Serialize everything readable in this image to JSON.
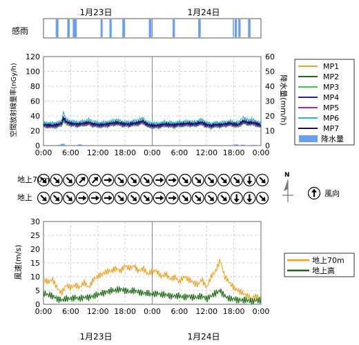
{
  "header": {
    "date_labels": [
      "1月23日",
      "1月24日"
    ]
  },
  "rain_sensor": {
    "label": "感雨",
    "color": "#6a9ef0",
    "intervals_hours": [
      [
        5.4,
        6.6
      ],
      [
        10.5,
        11.6
      ],
      [
        12.9,
        14.7
      ],
      [
        25.2,
        26.1
      ],
      [
        29.1,
        30.1
      ],
      [
        34.8,
        36.0
      ],
      [
        46.5,
        47.7
      ],
      [
        57.0,
        58.0
      ],
      [
        68.3,
        69.4
      ],
      [
        83.6,
        83.9
      ],
      [
        84.4,
        85.4
      ],
      [
        86.0,
        87.0
      ],
      [
        90.3,
        91.4
      ]
    ]
  },
  "chart_data": [
    {
      "type": "line",
      "id": "dose_rate",
      "title": "",
      "xlabel": "",
      "ylabel": "空間放射線量率(nGy/h)",
      "y2label": "降水量(mm/h)",
      "ylim": [
        0,
        120
      ],
      "y2lim": [
        0,
        60
      ],
      "yticks": [
        0,
        20,
        40,
        60,
        80,
        100,
        120
      ],
      "y2ticks": [
        0,
        10,
        20,
        30,
        40,
        50,
        60
      ],
      "xlim_hours": [
        0,
        96
      ],
      "xtick_labels": [
        "0:00",
        "6:00",
        "12:00",
        "18:00",
        "0:00",
        "6:00",
        "12:00",
        "18:00",
        "0:00"
      ],
      "grid": true,
      "legend": "right",
      "series": [
        {
          "name": "MP1",
          "color": "#f0a030",
          "x_hours": [
            0,
            4,
            6,
            8,
            8.8,
            10,
            12,
            14,
            16,
            18,
            20,
            22,
            24,
            26,
            28,
            30,
            32,
            34,
            36,
            38,
            40,
            42,
            44,
            46,
            48,
            50,
            52,
            54,
            56,
            58,
            60,
            62,
            64,
            66,
            68,
            70,
            72,
            74,
            76,
            78,
            80,
            82,
            84,
            86,
            88,
            90,
            92,
            94,
            96
          ],
          "values": [
            28,
            27,
            28,
            30,
            38,
            32,
            30,
            29,
            29,
            30,
            31,
            29,
            28,
            28,
            29,
            30,
            31,
            30,
            29,
            29,
            30,
            31,
            33,
            28,
            27,
            27,
            28,
            29,
            28,
            28,
            29,
            29,
            30,
            29,
            30,
            31,
            28,
            27,
            28,
            28,
            29,
            30,
            29,
            28,
            33,
            31,
            31,
            30,
            27
          ]
        },
        {
          "name": "MP2",
          "color": "#1a6b1a",
          "x_hours": [
            0,
            4,
            6,
            8,
            8.8,
            10,
            12,
            14,
            16,
            18,
            20,
            22,
            24,
            26,
            28,
            30,
            32,
            34,
            36,
            38,
            40,
            42,
            44,
            46,
            48,
            50,
            52,
            54,
            56,
            58,
            60,
            62,
            64,
            66,
            68,
            70,
            72,
            74,
            76,
            78,
            80,
            82,
            84,
            86,
            88,
            90,
            92,
            94,
            96
          ],
          "values": [
            27,
            26,
            27,
            29,
            37,
            31,
            29,
            28,
            28,
            29,
            30,
            28,
            27,
            27,
            28,
            29,
            30,
            29,
            28,
            28,
            29,
            30,
            32,
            27,
            26,
            26,
            27,
            28,
            27,
            27,
            28,
            28,
            29,
            28,
            29,
            30,
            27,
            26,
            27,
            27,
            28,
            29,
            28,
            27,
            32,
            30,
            30,
            29,
            26
          ]
        },
        {
          "name": "MP3",
          "color": "#33d333",
          "x_hours": [
            0,
            4,
            6,
            8,
            8.8,
            10,
            12,
            14,
            16,
            18,
            20,
            22,
            24,
            26,
            28,
            30,
            32,
            34,
            36,
            38,
            40,
            42,
            44,
            46,
            48,
            50,
            52,
            54,
            56,
            58,
            60,
            62,
            64,
            66,
            68,
            70,
            72,
            74,
            76,
            78,
            80,
            82,
            84,
            86,
            88,
            90,
            92,
            94,
            96
          ],
          "values": [
            25,
            24,
            25,
            27,
            33,
            28,
            27,
            26,
            26,
            27,
            28,
            26,
            25,
            25,
            26,
            27,
            28,
            27,
            26,
            26,
            27,
            28,
            30,
            25,
            24,
            24,
            25,
            26,
            25,
            25,
            26,
            26,
            27,
            26,
            27,
            28,
            25,
            24,
            25,
            25,
            26,
            27,
            26,
            25,
            30,
            28,
            28,
            27,
            24
          ]
        },
        {
          "name": "MP4",
          "color": "#1a1ad0",
          "x_hours": [
            0,
            4,
            6,
            8,
            8.8,
            10,
            12,
            14,
            16,
            18,
            20,
            22,
            24,
            26,
            28,
            30,
            32,
            34,
            36,
            38,
            40,
            42,
            44,
            46,
            48,
            50,
            52,
            54,
            56,
            58,
            60,
            62,
            64,
            66,
            68,
            70,
            72,
            74,
            76,
            78,
            80,
            82,
            84,
            86,
            88,
            90,
            92,
            94,
            96
          ],
          "values": [
            29,
            28,
            29,
            31,
            39,
            33,
            31,
            30,
            30,
            31,
            32,
            30,
            29,
            29,
            30,
            31,
            32,
            31,
            30,
            30,
            31,
            32,
            34,
            29,
            28,
            28,
            29,
            30,
            29,
            29,
            30,
            30,
            31,
            30,
            31,
            32,
            29,
            28,
            29,
            29,
            30,
            31,
            30,
            29,
            34,
            32,
            32,
            31,
            28
          ]
        },
        {
          "name": "MP5",
          "color": "#9a2ad0",
          "x_hours": [
            0,
            4,
            6,
            8,
            8.8,
            10,
            12,
            14,
            16,
            18,
            20,
            22,
            24,
            26,
            28,
            30,
            32,
            34,
            36,
            38,
            40,
            42,
            44,
            46,
            48,
            50,
            52,
            54,
            56,
            58,
            60,
            62,
            64,
            66,
            68,
            70,
            72,
            74,
            76,
            78,
            80,
            82,
            84,
            86,
            88,
            90,
            92,
            94,
            96
          ],
          "values": [
            26,
            25,
            26,
            28,
            35,
            30,
            28,
            27,
            27,
            28,
            29,
            27,
            26,
            26,
            27,
            28,
            29,
            28,
            27,
            27,
            28,
            29,
            31,
            26,
            25,
            25,
            26,
            27,
            26,
            26,
            27,
            27,
            28,
            27,
            28,
            29,
            26,
            25,
            26,
            26,
            27,
            28,
            27,
            26,
            31,
            29,
            29,
            28,
            25
          ]
        },
        {
          "name": "MP6",
          "color": "#20b8b8",
          "x_hours": [
            0,
            4,
            6,
            8,
            8.8,
            10,
            12,
            14,
            16,
            18,
            20,
            22,
            24,
            26,
            28,
            30,
            32,
            34,
            36,
            38,
            40,
            42,
            44,
            46,
            48,
            50,
            52,
            54,
            56,
            58,
            60,
            62,
            64,
            66,
            68,
            70,
            72,
            74,
            76,
            78,
            80,
            82,
            84,
            86,
            88,
            90,
            92,
            94,
            96
          ],
          "values": [
            31,
            30,
            31,
            33,
            45,
            35,
            33,
            32,
            32,
            33,
            35,
            33,
            31,
            31,
            32,
            33,
            35,
            33,
            32,
            32,
            33,
            35,
            37,
            31,
            30,
            30,
            31,
            32,
            31,
            31,
            32,
            32,
            33,
            32,
            33,
            35,
            31,
            30,
            31,
            31,
            32,
            33,
            32,
            31,
            38,
            35,
            35,
            33,
            30
          ]
        },
        {
          "name": "MP7",
          "color": "#10105a",
          "x_hours": [
            0,
            4,
            6,
            8,
            8.8,
            10,
            12,
            14,
            16,
            18,
            20,
            22,
            24,
            26,
            28,
            30,
            32,
            34,
            36,
            38,
            40,
            42,
            44,
            46,
            48,
            50,
            52,
            54,
            56,
            58,
            60,
            62,
            64,
            66,
            68,
            70,
            72,
            74,
            76,
            78,
            80,
            82,
            84,
            86,
            88,
            90,
            92,
            94,
            96
          ],
          "values": [
            28,
            27,
            28,
            30,
            37,
            32,
            30,
            29,
            29,
            30,
            31,
            29,
            28,
            28,
            29,
            30,
            31,
            30,
            29,
            29,
            30,
            31,
            33,
            28,
            27,
            27,
            28,
            29,
            28,
            28,
            29,
            29,
            30,
            29,
            30,
            31,
            28,
            27,
            28,
            28,
            29,
            30,
            29,
            28,
            33,
            31,
            31,
            30,
            27
          ]
        }
      ],
      "bar_series": {
        "name": "降水量",
        "color": "#6a9ef0",
        "axis": "y2",
        "x_hours": [
          7,
          8.5,
          16,
          17,
          36,
          52,
          80,
          85,
          88,
          93
        ],
        "values": [
          0.5,
          1.2,
          0.8,
          0.4,
          0.3,
          0.3,
          0.3,
          0.8,
          0.6,
          0.5
        ]
      }
    },
    {
      "type": "line",
      "id": "wind_speed",
      "title": "",
      "xlabel": "",
      "ylabel": "風速(m/s)",
      "ylim": [
        0,
        30
      ],
      "yticks": [
        0,
        5,
        10,
        15,
        20,
        25,
        30
      ],
      "xlim_hours": [
        0,
        96
      ],
      "xtick_labels": [
        "0:00",
        "6:00",
        "12:00",
        "18:00",
        "0:00",
        "6:00",
        "12:00",
        "18:00",
        "0:00"
      ],
      "grid": true,
      "legend": "right",
      "series": [
        {
          "name": "地上70m",
          "color": "#f0a020",
          "x_hours": [
            0,
            2,
            4,
            6,
            8,
            10,
            12,
            14,
            16,
            18,
            20,
            22,
            24,
            26,
            28,
            30,
            32,
            34,
            36,
            38,
            40,
            42,
            44,
            46,
            48,
            50,
            52,
            54,
            56,
            58,
            60,
            62,
            64,
            66,
            68,
            70,
            72,
            74,
            76,
            78,
            80,
            82,
            84,
            86,
            88,
            90,
            92,
            94,
            96
          ],
          "values": [
            9,
            8,
            9,
            6,
            4,
            7,
            6,
            7,
            6,
            8,
            6,
            9,
            10,
            11,
            12,
            12,
            13,
            12,
            14,
            13,
            14,
            12,
            13,
            11,
            12,
            12,
            10,
            11,
            9,
            10,
            8,
            10,
            9,
            8,
            7,
            9,
            6,
            10,
            12,
            16,
            10,
            8,
            6,
            5,
            4,
            3,
            2,
            3,
            2
          ]
        },
        {
          "name": "地上高",
          "color": "#1a6b10",
          "x_hours": [
            0,
            2,
            4,
            6,
            8,
            10,
            12,
            14,
            16,
            18,
            20,
            22,
            24,
            26,
            28,
            30,
            32,
            34,
            36,
            38,
            40,
            42,
            44,
            46,
            48,
            50,
            52,
            54,
            56,
            58,
            60,
            62,
            64,
            66,
            68,
            70,
            72,
            74,
            76,
            78,
            80,
            82,
            84,
            86,
            88,
            90,
            92,
            94,
            96
          ],
          "values": [
            4,
            3.5,
            3,
            2,
            1.5,
            2,
            2,
            2.5,
            2,
            2.5,
            2.5,
            3,
            3.5,
            4,
            4.5,
            5,
            5,
            5.5,
            5,
            4.5,
            5,
            4.5,
            4,
            4,
            3.5,
            4,
            3.5,
            3.5,
            3,
            3,
            3,
            2.5,
            3,
            2.5,
            2.5,
            3,
            2,
            3,
            4,
            5,
            3,
            2,
            2,
            1.5,
            1.5,
            1.5,
            1,
            1.5,
            1.5
          ]
        }
      ]
    }
  ],
  "wind_direction": {
    "rows": [
      {
        "label": "地上70m",
        "angles_deg": [
          135,
          135,
          135,
          45,
          45,
          90,
          135,
          135,
          135,
          90,
          90,
          135,
          135,
          135,
          135,
          135,
          180,
          135
        ]
      },
      {
        "label": "地上",
        "angles_deg": [
          135,
          135,
          135,
          90,
          90,
          90,
          135,
          135,
          135,
          90,
          90,
          135,
          135,
          135,
          135,
          180,
          180,
          135
        ]
      }
    ],
    "legend_label": "風向",
    "legend_angle_deg": 0,
    "north_label": "N"
  }
}
